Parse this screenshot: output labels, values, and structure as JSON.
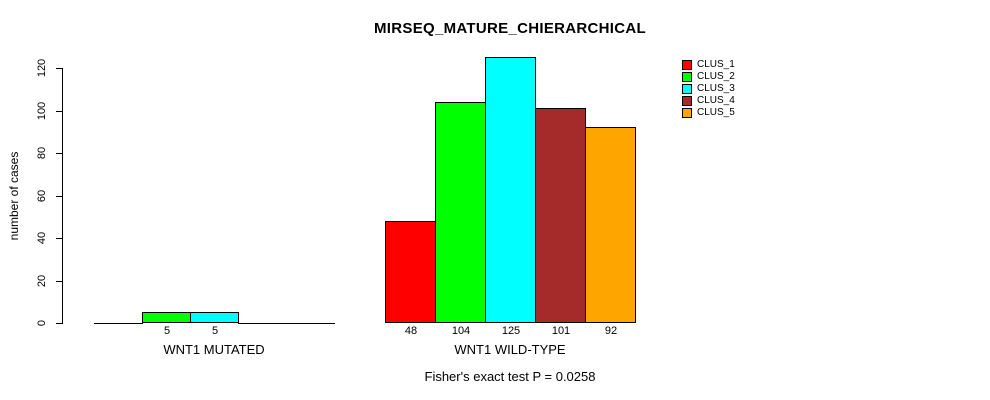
{
  "title": "MIRSEQ_MATURE_CHIERARCHICAL",
  "chart_data": {
    "type": "bar",
    "title": "MIRSEQ_MATURE_CHIERARCHICAL",
    "ylabel": "number of cases",
    "xlabel": "",
    "ylim": [
      0,
      120
    ],
    "yticks": [
      0,
      20,
      40,
      60,
      80,
      100,
      120
    ],
    "grid": false,
    "background": "#ffffff",
    "text_color": "#000000",
    "series": [
      "CLUS_1",
      "CLUS_2",
      "CLUS_3",
      "CLUS_4",
      "CLUS_5"
    ],
    "colors": [
      "#ff0000",
      "#00ff00",
      "#00ffff",
      "#a52a2a",
      "#ffa500"
    ],
    "groups": [
      {
        "label": "WNT1 MUTATED",
        "values": [
          0,
          5,
          5,
          0,
          0
        ],
        "bar_labels": [
          "",
          "5",
          "5",
          "",
          ""
        ]
      },
      {
        "label": "WNT1 WILD-TYPE",
        "values": [
          48,
          104,
          125,
          101,
          92
        ],
        "bar_labels": [
          "48",
          "104",
          "125",
          "101",
          "92"
        ]
      }
    ],
    "legend": {
      "position": "top-right",
      "entries": [
        {
          "label": "CLUS_1",
          "color": "#ff0000"
        },
        {
          "label": "CLUS_2",
          "color": "#00ff00"
        },
        {
          "label": "CLUS_3",
          "color": "#00ffff"
        },
        {
          "label": "CLUS_4",
          "color": "#a52a2a"
        },
        {
          "label": "CLUS_5",
          "color": "#ffa500"
        }
      ]
    },
    "annotation": "Fisher's exact test P = 0.0258"
  }
}
